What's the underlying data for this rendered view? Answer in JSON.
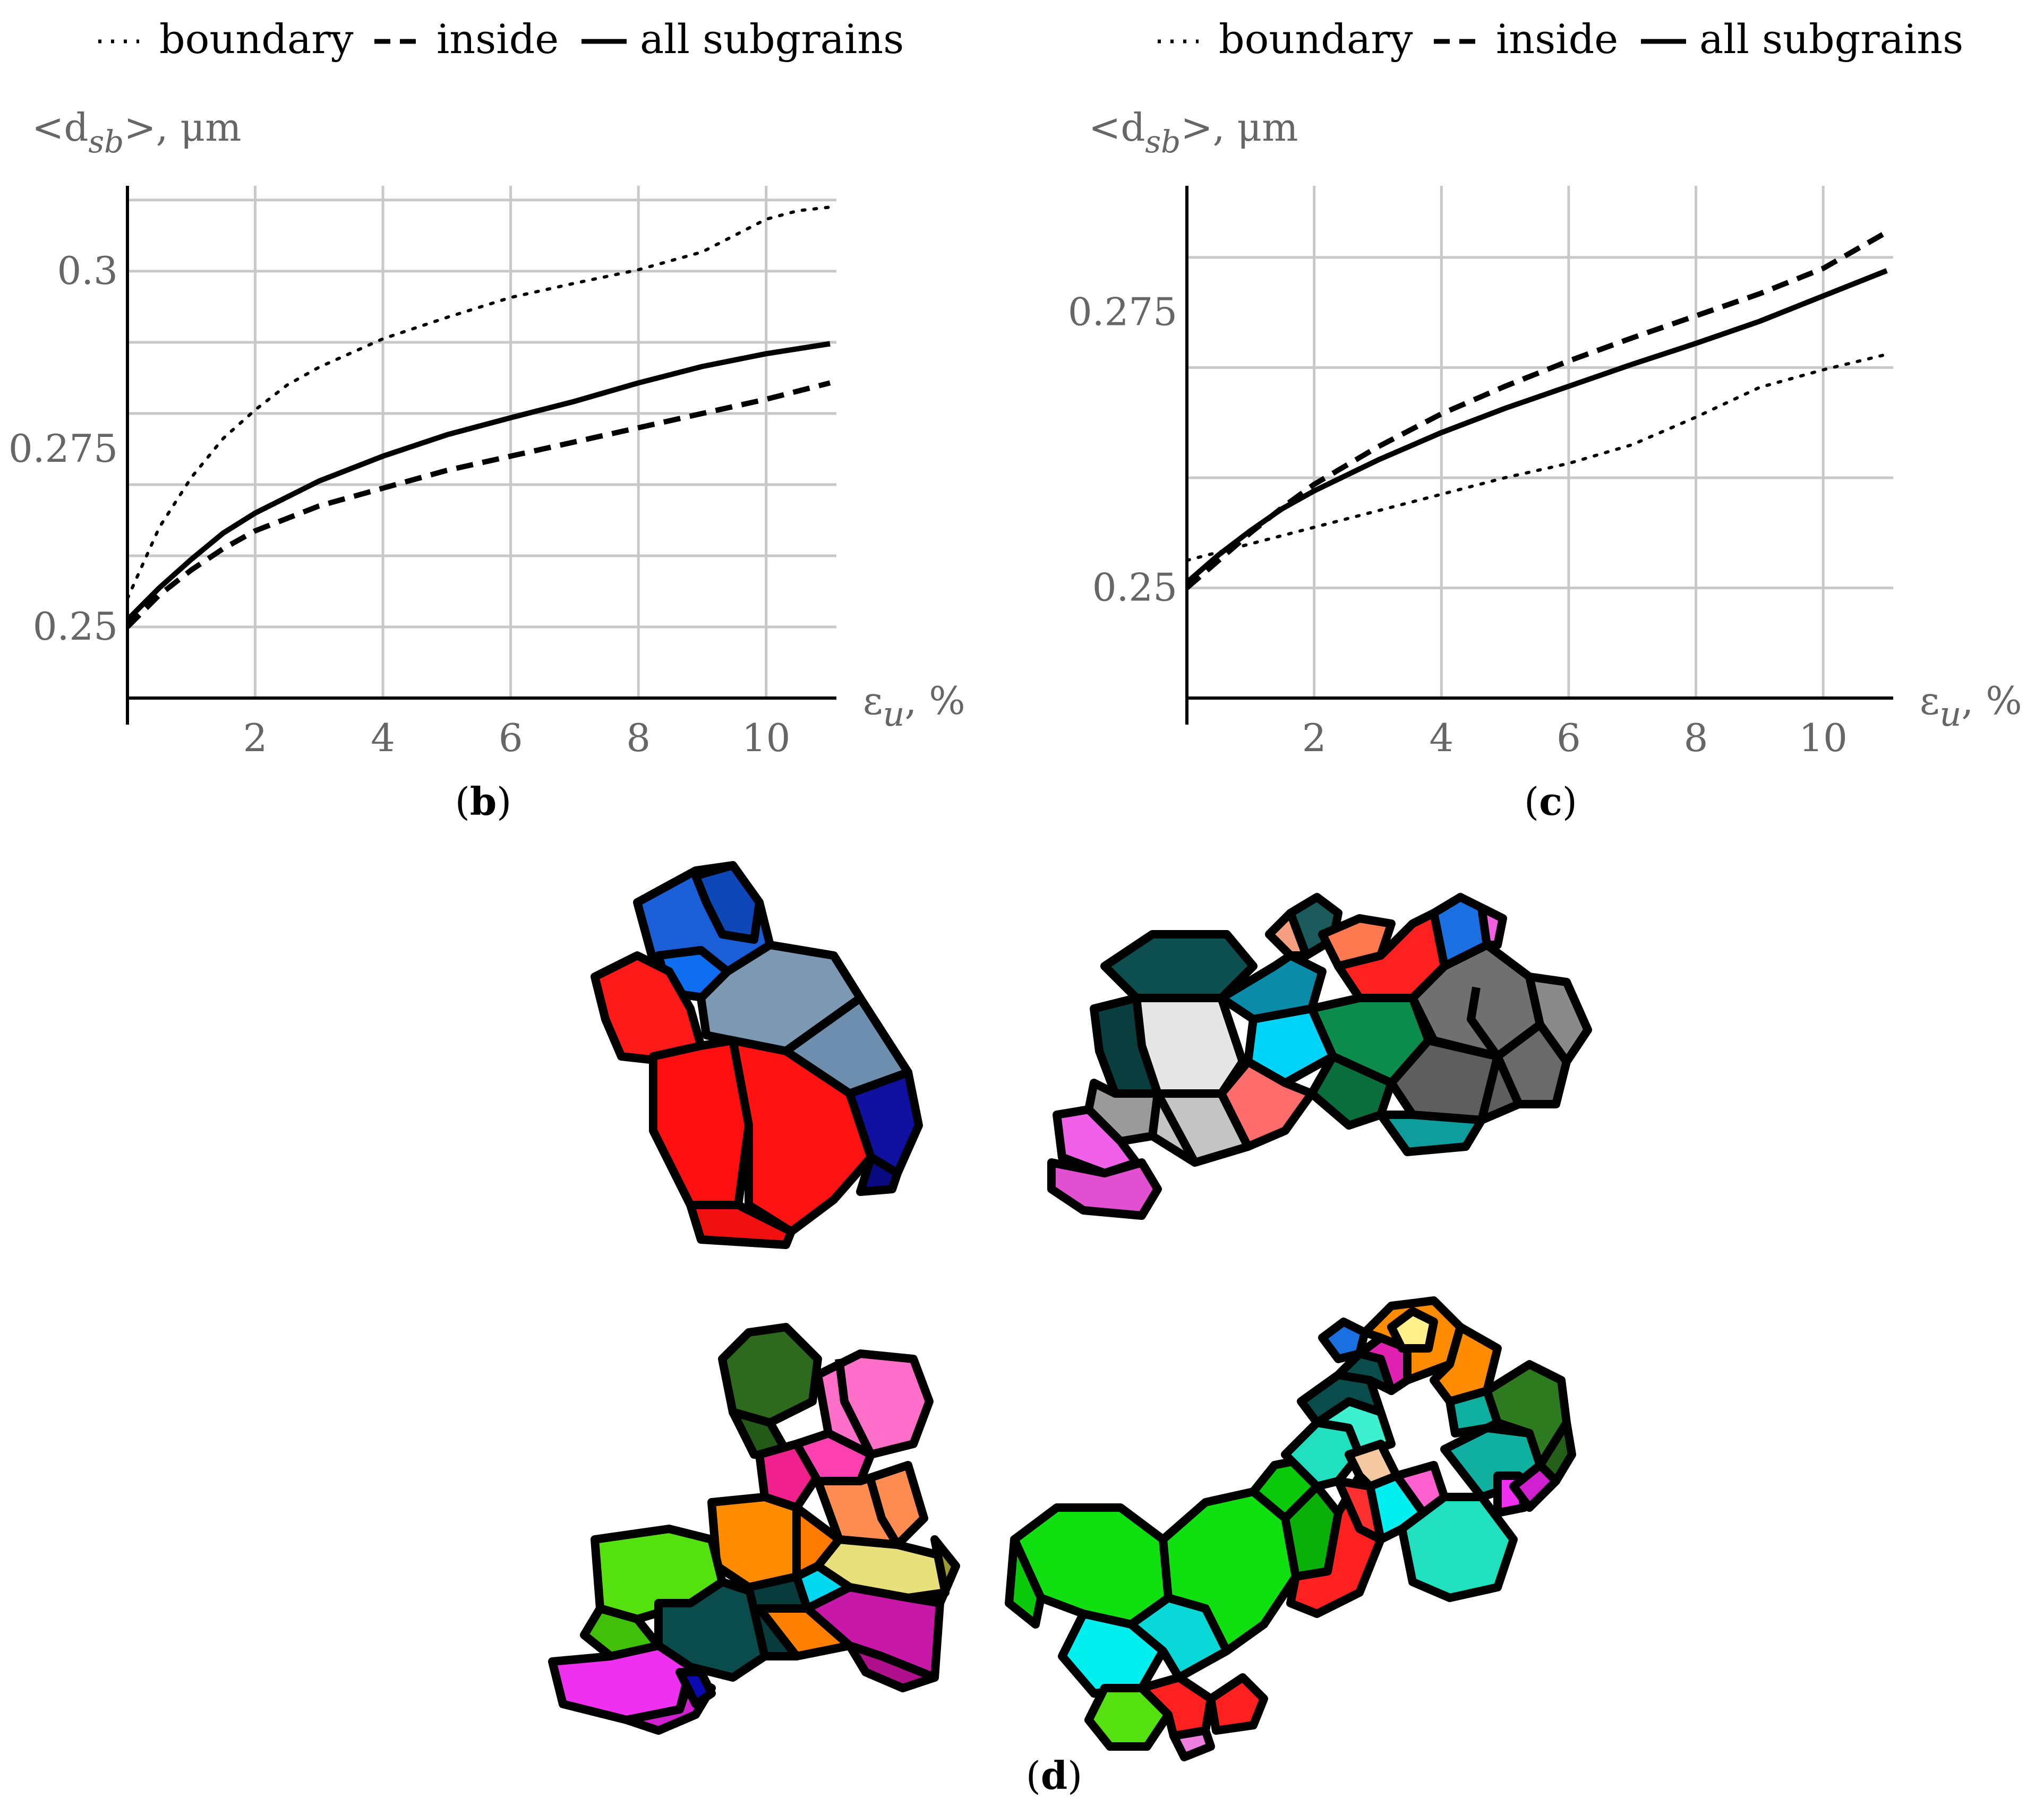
{
  "legend": {
    "boundary": "boundary",
    "inside": "inside",
    "all": "all subgrains"
  },
  "chart_data": [
    {
      "type": "line",
      "panel_label": "b",
      "ylabel_prefix": "<d",
      "ylabel_sub": "sb",
      "ylabel_suffix": ">, μm",
      "xlabel_main": "ε",
      "xlabel_sub": "u",
      "xlabel_suffix": ", %",
      "xlim": [
        0,
        11.1
      ],
      "ylim": [
        0.24,
        0.312
      ],
      "x_ticks": [
        2,
        4,
        6,
        8,
        10
      ],
      "y_ticks": [
        0.25,
        0.275,
        0.3
      ],
      "y_tick_labels": [
        "0.25",
        "0.275",
        "0.3"
      ],
      "y_gridlines": [
        0.25,
        0.26,
        0.27,
        0.28,
        0.29,
        0.3,
        0.31
      ],
      "grid": true,
      "series": [
        {
          "name": "boundary",
          "style": "dotted",
          "x": [
            0,
            0.5,
            1,
            1.5,
            2,
            2.5,
            3,
            3.5,
            4,
            5,
            6,
            7,
            8,
            9,
            10,
            10.5,
            11
          ],
          "y": [
            0.254,
            0.264,
            0.271,
            0.2765,
            0.2805,
            0.284,
            0.2865,
            0.2885,
            0.2905,
            0.2935,
            0.2963,
            0.2983,
            0.3002,
            0.3027,
            0.3073,
            0.3085,
            0.309
          ]
        },
        {
          "name": "inside",
          "style": "dashed",
          "x": [
            0,
            0.5,
            1,
            1.5,
            2,
            3,
            4,
            5,
            6,
            7,
            8,
            9,
            10,
            11
          ],
          "y": [
            0.25,
            0.2545,
            0.258,
            0.261,
            0.2635,
            0.267,
            0.2695,
            0.272,
            0.274,
            0.276,
            0.278,
            0.28,
            0.282,
            0.2843
          ]
        },
        {
          "name": "all subgrains",
          "style": "solid",
          "x": [
            0,
            0.5,
            1,
            1.5,
            2,
            3,
            4,
            5,
            6,
            7,
            8,
            9,
            10,
            11
          ],
          "y": [
            0.251,
            0.2555,
            0.2595,
            0.2632,
            0.266,
            0.2705,
            0.274,
            0.277,
            0.2794,
            0.2817,
            0.2843,
            0.2866,
            0.2884,
            0.2898
          ]
        }
      ]
    },
    {
      "type": "line",
      "panel_label": "c",
      "ylabel_prefix": "<d",
      "ylabel_sub": "sb",
      "ylabel_suffix": ">, μm",
      "xlabel_main": "ε",
      "xlabel_sub": "u",
      "xlabel_suffix": ", %",
      "xlim": [
        0,
        11.1
      ],
      "ylim": [
        0.24,
        0.2865
      ],
      "x_ticks": [
        2,
        4,
        6,
        8,
        10
      ],
      "y_ticks": [
        0.25,
        0.275
      ],
      "y_tick_labels": [
        "0.25",
        "0.275"
      ],
      "y_gridlines": [
        0.25,
        0.26,
        0.27,
        0.28
      ],
      "grid": true,
      "series": [
        {
          "name": "boundary",
          "style": "dotted",
          "x": [
            0,
            1,
            2,
            3,
            4,
            5,
            6,
            7,
            8,
            9,
            10,
            11
          ],
          "y": [
            0.2525,
            0.254,
            0.2555,
            0.257,
            0.2585,
            0.26,
            0.2613,
            0.263,
            0.2655,
            0.2682,
            0.2698,
            0.2712
          ]
        },
        {
          "name": "inside",
          "style": "dashed",
          "x": [
            0,
            0.5,
            1,
            1.5,
            2,
            3,
            4,
            5,
            6,
            7,
            8,
            9,
            10,
            11
          ],
          "y": [
            0.25,
            0.2525,
            0.255,
            0.2573,
            0.2594,
            0.2628,
            0.2658,
            0.2683,
            0.2706,
            0.2727,
            0.2747,
            0.2767,
            0.279,
            0.2823
          ]
        },
        {
          "name": "all subgrains",
          "style": "solid",
          "x": [
            0,
            0.5,
            1,
            1.5,
            2,
            3,
            4,
            5,
            6,
            7,
            8,
            9,
            10,
            11
          ],
          "y": [
            0.2505,
            0.253,
            0.2552,
            0.2572,
            0.2588,
            0.2616,
            0.2641,
            0.2663,
            0.2683,
            0.2703,
            0.2722,
            0.2742,
            0.2765,
            0.2788
          ]
        }
      ]
    }
  ],
  "panel_d_label": "d",
  "clusters": [
    {
      "name": "cluster-red-blue",
      "colors": [
        "#ff1010",
        "#1e6fe0",
        "#6f92b0",
        "#101090",
        "#0a40c0"
      ]
    },
    {
      "name": "cluster-grey-cyan",
      "colors": [
        "#dcdcdc",
        "#6a6a6a",
        "#00d0f8",
        "#0c8c4a",
        "#f060e0",
        "#ff6a6a",
        "#0a4c4c"
      ]
    },
    {
      "name": "cluster-multicolor-1",
      "colors": [
        "#2e6a1e",
        "#ff6ec8",
        "#ff8c00",
        "#e020b0",
        "#55e010",
        "#0a4c4c",
        "#f030f0"
      ]
    },
    {
      "name": "cluster-multicolor-2",
      "colors": [
        "#10e010",
        "#00f0f0",
        "#20e0c0",
        "#ff2020",
        "#2e7a1e",
        "#ff8c00",
        "#0a4c4c"
      ]
    }
  ]
}
